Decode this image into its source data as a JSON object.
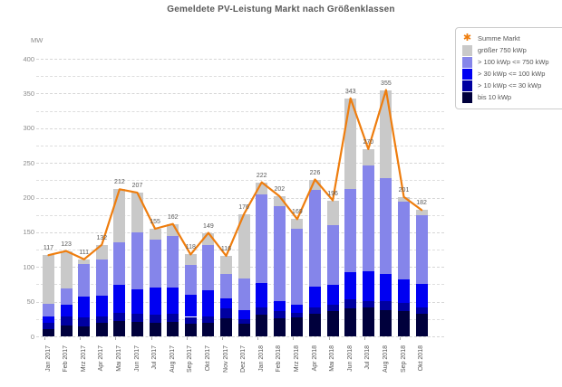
{
  "chart": {
    "title": "Gemeldete PV-Leistung Markt nach Größenklassen",
    "y_unit": "MW"
  },
  "chart_data": {
    "type": "bar",
    "stacked": true,
    "title": "Gemeldete PV-Leistung Markt nach Größenklassen",
    "xlabel": "",
    "ylabel": "MW",
    "ylim": [
      0,
      400
    ],
    "y_tick_labeled_step": 50,
    "y_tick_grid_step": 25,
    "grid": true,
    "legend_position": "top-right",
    "categories": [
      "Jan 2017",
      "Feb 2017",
      "Mrz 2017",
      "Apr 2017",
      "Mai 2017",
      "Jun 2017",
      "Jul 2017",
      "Aug 2017",
      "Sep 2017",
      "Okt 2017",
      "Nov 2017",
      "Dez 2017",
      "Jan 2018",
      "Feb 2018",
      "Mrz 2018",
      "Apr 2018",
      "Mai 2018",
      "Jun 2018",
      "Jul 2018",
      "Aug 2018",
      "Sep 2018",
      "Okt 2018"
    ],
    "series": [
      {
        "name": "bis 10 kWp",
        "color": "#00003c",
        "values": [
          11,
          16,
          14,
          19,
          22,
          21,
          20,
          21,
          18,
          19,
          26,
          18,
          31,
          26,
          27,
          32,
          36,
          40,
          42,
          38,
          37,
          32
        ]
      },
      {
        "name": "> 10 kWp <= 30 kWp",
        "color": "#0000a0",
        "values": [
          8,
          13,
          14,
          10,
          12,
          12,
          11,
          12,
          10,
          10,
          14,
          7,
          11,
          11,
          7,
          10,
          9,
          14,
          9,
          13,
          11,
          10
        ]
      },
      {
        "name": "> 30 kWp <= 100 kWp",
        "color": "#0000f2",
        "values": [
          10,
          17,
          29,
          30,
          40,
          35,
          40,
          37,
          32,
          37,
          15,
          13,
          35,
          14,
          11,
          30,
          29,
          38,
          43,
          39,
          34,
          34
        ]
      },
      {
        "name": "> 100 kWp <= 750 kWp",
        "color": "#8585ea",
        "values": [
          18,
          23,
          47,
          52,
          62,
          82,
          68,
          74,
          43,
          65,
          35,
          45,
          127,
          136,
          110,
          139,
          86,
          120,
          152,
          138,
          112,
          98
        ]
      },
      {
        "name": "größer 750 kWp",
        "color": "#c9c9c9",
        "values": [
          70,
          54,
          7,
          21,
          76,
          57,
          16,
          18,
          15,
          18,
          26,
          93,
          18,
          15,
          14,
          15,
          36,
          131,
          24,
          127,
          7,
          8
        ]
      }
    ],
    "line_series": {
      "name": "Summe Markt",
      "color": "#ee7d0e",
      "values": [
        117,
        123,
        111,
        132,
        212,
        207,
        155,
        162,
        118,
        149,
        116,
        176,
        222,
        202,
        169,
        226,
        196,
        343,
        270,
        355,
        201,
        182
      ]
    },
    "bar_total_labels": [
      117,
      123,
      111,
      132,
      212,
      207,
      155,
      162,
      118,
      149,
      116,
      176,
      222,
      202,
      169,
      226,
      196,
      343,
      270,
      355,
      201,
      182
    ],
    "legend": [
      {
        "label": "Summe Markt",
        "color": "#ee7d0e",
        "marker": "star"
      },
      {
        "label": "größer 750 kWp",
        "color": "#c9c9c9",
        "marker": "swatch"
      },
      {
        "label": "> 100 kWp <= 750 kWp",
        "color": "#8585ea",
        "marker": "swatch"
      },
      {
        "label": "> 30 kWp <= 100 kWp",
        "color": "#0000f2",
        "marker": "swatch"
      },
      {
        "label": "> 10 kWp <= 30 kWp",
        "color": "#0000a0",
        "marker": "swatch"
      },
      {
        "label": "bis 10 kWp",
        "color": "#00003c",
        "marker": "swatch"
      }
    ]
  }
}
